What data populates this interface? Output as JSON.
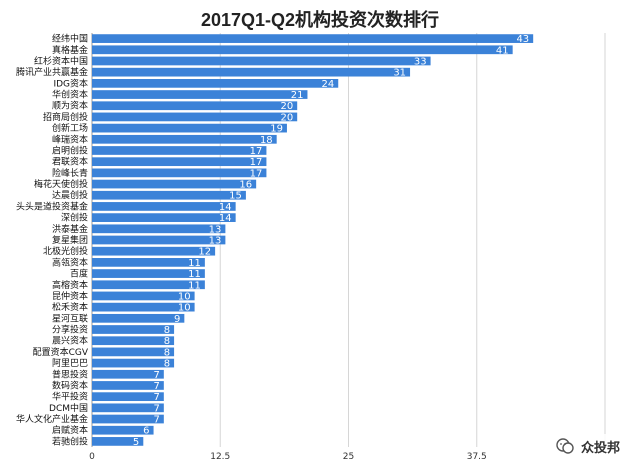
{
  "chart_data": {
    "type": "bar",
    "orientation": "horizontal",
    "title": "2017Q1-Q2机构投资次数排行",
    "categories": [
      "经纬中国",
      "真格基金",
      "红杉资本中国",
      "腾讯产业共赢基金",
      "IDG资本",
      "华创资本",
      "顺为资本",
      "招商局创投",
      "创新工场",
      "峰瑞资本",
      "启明创投",
      "君联资本",
      "险峰长青",
      "梅花天使创投",
      "达晨创投",
      "头头是道投资基金",
      "深创投",
      "洪泰基金",
      "复星集团",
      "北极光创投",
      "高瓴资本",
      "百度",
      "高榕资本",
      "昆仲资本",
      "松禾资本",
      "星河互联",
      "分享投资",
      "晨兴资本",
      "配置资本CGV",
      "阿里巴巴",
      "普思投资",
      "数码资本",
      "华平投资",
      "DCM中国",
      "华人文化产业基金",
      "启赋资本",
      "若驰创投"
    ],
    "values": [
      43,
      41,
      33,
      31,
      24,
      21,
      20,
      20,
      19,
      18,
      17,
      17,
      17,
      16,
      15,
      14,
      14,
      13,
      13,
      12,
      11,
      11,
      11,
      10,
      10,
      9,
      8,
      8,
      8,
      8,
      7,
      7,
      7,
      7,
      7,
      6,
      5
    ],
    "x_ticks": [
      "0",
      "12.5",
      "25",
      "37.5"
    ],
    "xlim": [
      0,
      50
    ],
    "grid": true,
    "bar_color": "#3b82d8"
  },
  "watermark": {
    "text": "众投邦"
  }
}
